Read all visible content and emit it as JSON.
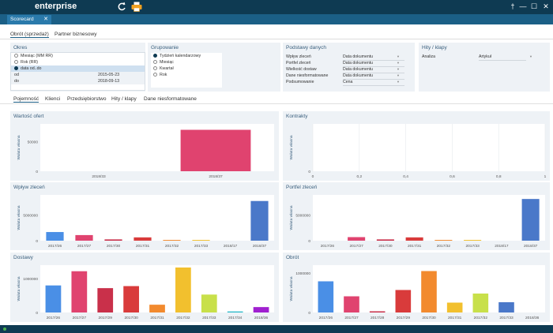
{
  "app": {
    "title": "enterprise",
    "pin": "†",
    "minimize": "—",
    "maximize": "☐",
    "close": "✕"
  },
  "tab": {
    "label": "Scorecard",
    "close": "✕"
  },
  "subtabs": [
    "Obrót (sprzedaż)",
    "Partner biznesowy"
  ],
  "filters": {
    "okres": {
      "title": "Okres",
      "options": [
        "Miesiąc (MM RR)",
        "Rok (RR)",
        "data od..do"
      ],
      "selected_index": 2,
      "from_label": "od",
      "from_value": "2015-05-23",
      "to_label": "do",
      "to_value": "2018-09-13"
    },
    "grupowanie": {
      "title": "Grupowanie",
      "options": [
        "Tydzień kalendarzowy",
        "Miesiąc",
        "Kwartał",
        "Rok"
      ],
      "selected_index": 0
    },
    "podstawy": {
      "title": "Podstawy danych",
      "rows": [
        {
          "label": "Wpływ zleceń",
          "value": "Data dokumentu"
        },
        {
          "label": "Portfel zleceń",
          "value": "Data dokumentu"
        },
        {
          "label": "Wielkość dostaw",
          "value": "Data dokumentu"
        },
        {
          "label": "Dane niesformatowane",
          "value": "Data dokumentu"
        },
        {
          "label": "Podsumowanie",
          "value": "Cena"
        }
      ]
    },
    "hity": {
      "title": "Hity / klapy",
      "analiza_label": "Analiza",
      "analiza_value": "Artykuł"
    }
  },
  "viewtabs": [
    "Pojemność",
    "Klienci",
    "Przedsiębiorstwo",
    "Hity / klapy",
    "Dane niesformatowane"
  ],
  "colors": {
    "dark_bar": "#0e3a52",
    "tab_bar": "#1b5f86",
    "panel_bg": "#eef2f6",
    "accent_text": "#3a5f7d"
  },
  "icons": [
    "refresh-icon",
    "printer-icon",
    "pin-icon"
  ],
  "chart_data": [
    {
      "id": "wartosc",
      "type": "bar",
      "title": "Wartość ofert",
      "ylabel": "Waluta własna",
      "categories": [
        "2018/33",
        "2018/37"
      ],
      "values": [
        0,
        70000
      ],
      "ylim": [
        0,
        80000
      ],
      "yticks": [
        0,
        50000
      ],
      "colors": [
        "#e0436f",
        "#e0436f"
      ]
    },
    {
      "id": "kontrakty",
      "type": "bar",
      "title": "Kontrakty",
      "ylabel": "Waluta własna",
      "categories": [],
      "values": [],
      "ylim": [
        0,
        1
      ],
      "xlim": [
        0,
        1
      ],
      "xticks": [
        "0",
        "0,2",
        "0,4",
        "0,6",
        "0,8",
        "1"
      ],
      "yticks": [
        0
      ]
    },
    {
      "id": "wplyw",
      "type": "bar",
      "title": "Wpływ zleceń",
      "ylabel": "Waluta własna",
      "categories": [
        "2017/26",
        "2017/27",
        "2017/30",
        "2017/31",
        "2017/32",
        "2017/33",
        "2018/17",
        "2018/37"
      ],
      "values": [
        1700000,
        1100000,
        250000,
        650000,
        150000,
        150000,
        0,
        7800000
      ],
      "ylim": [
        0,
        9000000
      ],
      "yticks": [
        0,
        5000000
      ],
      "colors": [
        "#4a8fe6",
        "#e0436f",
        "#c9304a",
        "#d93b3b",
        "#f28a2e",
        "#f2c02e",
        "#9ed84a",
        "#4a78c9"
      ]
    },
    {
      "id": "portfel",
      "type": "bar",
      "title": "Portfel zleceń",
      "ylabel": "Waluta własna",
      "categories": [
        "2017/26",
        "2017/27",
        "2017/30",
        "2017/31",
        "2017/32",
        "2017/33",
        "2018/17",
        "2018/37"
      ],
      "values": [
        0,
        700000,
        250000,
        650000,
        150000,
        150000,
        0,
        8200000
      ],
      "ylim": [
        0,
        9000000
      ],
      "yticks": [
        0,
        5000000
      ],
      "colors": [
        "#4a8fe6",
        "#e0436f",
        "#c9304a",
        "#d93b3b",
        "#f28a2e",
        "#f2c02e",
        "#9ed84a",
        "#4a78c9"
      ]
    },
    {
      "id": "dostawy",
      "type": "bar",
      "title": "Dostawy",
      "ylabel": "Waluta własna",
      "categories": [
        "2017/26",
        "2017/27",
        "2017/29",
        "2017/30",
        "2017/31",
        "2017/32",
        "2017/33",
        "2017/34",
        "2018/36"
      ],
      "values": [
        800000,
        1220000,
        720000,
        780000,
        230000,
        1330000,
        530000,
        30000,
        160000
      ],
      "ylim": [
        0,
        1400000
      ],
      "yticks": [
        0,
        1000000
      ],
      "colors": [
        "#4a8fe6",
        "#e0436f",
        "#c9304a",
        "#d93b3b",
        "#f28a2e",
        "#f2c02e",
        "#c8e04a",
        "#26b8c8",
        "#a020d0"
      ]
    },
    {
      "id": "obrot",
      "type": "bar",
      "title": "Obrót",
      "ylabel": "Waluta własna",
      "categories": [
        "2017/26",
        "2017/27",
        "2017/28",
        "2017/29",
        "2017/30",
        "2017/31",
        "2017/32",
        "2017/33",
        "2018/36"
      ],
      "values": [
        790000,
        410000,
        30000,
        570000,
        1050000,
        250000,
        480000,
        260000,
        0
      ],
      "ylim": [
        0,
        1200000
      ],
      "yticks": [
        0,
        1000000
      ],
      "colors": [
        "#4a8fe6",
        "#e0436f",
        "#c9304a",
        "#d93b3b",
        "#f28a2e",
        "#f2c02e",
        "#c8e04a",
        "#4a78c9",
        "#9e9e9e"
      ]
    }
  ]
}
